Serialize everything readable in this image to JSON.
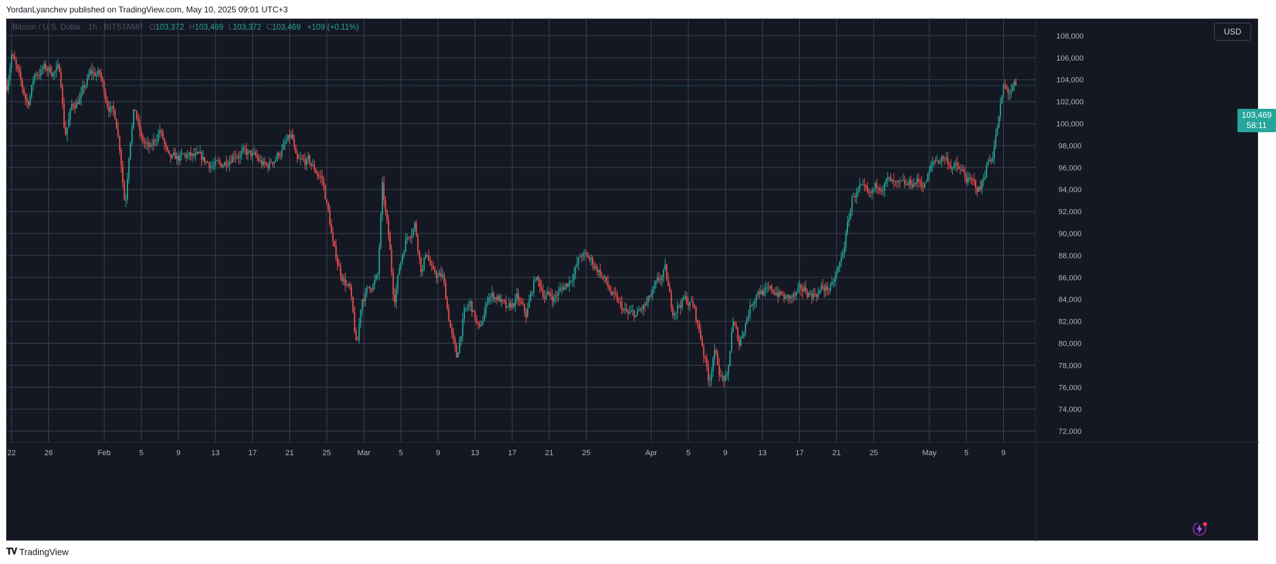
{
  "header": {
    "publish_text": "YordanLyanchev published on TradingView.com, May 10, 2025 09:01 UTC+3"
  },
  "legend": {
    "symbol": "Bitcoin / U.S. Dollar · 1h · BITSTAMP",
    "o_label": "O",
    "o_value": "103,372",
    "h_label": "H",
    "h_value": "103,469",
    "l_label": "L",
    "l_value": "103,372",
    "c_label": "C",
    "c_value": "103,469",
    "change": "+109 (+0.11%)"
  },
  "currency": "USD",
  "last_price": {
    "price": "103,469",
    "countdown": "58:11"
  },
  "footer": {
    "brand": "TradingView"
  },
  "colors": {
    "up": "#26a69a",
    "down": "#ef5350",
    "grid": "#3c4150",
    "background": "#141823",
    "axis_text": "#b2b5be"
  },
  "chart_data": {
    "type": "candlestick",
    "title": "",
    "interval": "1h",
    "ylim": [
      71000,
      109500
    ],
    "y_ticks": [
      72000,
      74000,
      76000,
      78000,
      80000,
      82000,
      84000,
      86000,
      88000,
      90000,
      92000,
      94000,
      96000,
      98000,
      100000,
      102000,
      104000,
      106000,
      108000
    ],
    "y_tick_labels": [
      "72,000",
      "74,000",
      "76,000",
      "78,000",
      "80,000",
      "82,000",
      "84,000",
      "86,000",
      "88,000",
      "90,000",
      "92,000",
      "94,000",
      "96,000",
      "98,000",
      "100,000",
      "102,000",
      "104,000",
      "106,000",
      "108,000"
    ],
    "x_axis_labels": [
      "22",
      "26",
      "Feb",
      "5",
      "9",
      "13",
      "17",
      "21",
      "25",
      "Mar",
      "5",
      "9",
      "13",
      "17",
      "21",
      "25",
      "Apr",
      "5",
      "9",
      "13",
      "17",
      "21",
      "25",
      "May",
      "5",
      "9"
    ],
    "x_axis_dates": [
      "2025-01-22",
      "2025-01-26",
      "2025-02-01",
      "2025-02-05",
      "2025-02-09",
      "2025-02-13",
      "2025-02-17",
      "2025-02-21",
      "2025-02-25",
      "2025-03-01",
      "2025-03-05",
      "2025-03-09",
      "2025-03-13",
      "2025-03-17",
      "2025-03-21",
      "2025-03-25",
      "2025-04-01",
      "2025-04-05",
      "2025-04-09",
      "2025-04-13",
      "2025-04-17",
      "2025-04-21",
      "2025-04-25",
      "2025-05-01",
      "2025-05-05",
      "2025-05-09"
    ],
    "x_range": [
      "2025-01-21T12:00",
      "2025-05-10T09:00"
    ],
    "price_path": [
      {
        "t": "2025-01-21T12:00",
        "p": 103500
      },
      {
        "t": "2025-01-22T00:00",
        "p": 106500
      },
      {
        "t": "2025-01-23T00:00",
        "p": 103500
      },
      {
        "t": "2025-01-23T18:00",
        "p": 101800
      },
      {
        "t": "2025-01-24T12:00",
        "p": 104500
      },
      {
        "t": "2025-01-25T12:00",
        "p": 105000
      },
      {
        "t": "2025-01-26T12:00",
        "p": 104800
      },
      {
        "t": "2025-01-27T06:00",
        "p": 104800
      },
      {
        "t": "2025-01-27T18:00",
        "p": 99000
      },
      {
        "t": "2025-01-28T12:00",
        "p": 101500
      },
      {
        "t": "2025-01-29T12:00",
        "p": 102500
      },
      {
        "t": "2025-01-30T12:00",
        "p": 104500
      },
      {
        "t": "2025-01-31T12:00",
        "p": 104500
      },
      {
        "t": "2025-02-01T06:00",
        "p": 102200
      },
      {
        "t": "2025-02-02T06:00",
        "p": 100500
      },
      {
        "t": "2025-02-02T18:00",
        "p": 97500
      },
      {
        "t": "2025-02-03T06:00",
        "p": 92500
      },
      {
        "t": "2025-02-03T18:00",
        "p": 98500
      },
      {
        "t": "2025-02-04T06:00",
        "p": 101500
      },
      {
        "t": "2025-02-05T00:00",
        "p": 98500
      },
      {
        "t": "2025-02-06T00:00",
        "p": 97500
      },
      {
        "t": "2025-02-07T00:00",
        "p": 99500
      },
      {
        "t": "2025-02-08T00:00",
        "p": 96500
      },
      {
        "t": "2025-02-10T00:00",
        "p": 97000
      },
      {
        "t": "2025-02-12T00:00",
        "p": 96500
      },
      {
        "t": "2025-02-13T12:00",
        "p": 96000
      },
      {
        "t": "2025-02-15T00:00",
        "p": 97500
      },
      {
        "t": "2025-02-17T00:00",
        "p": 97000
      },
      {
        "t": "2025-02-18T12:00",
        "p": 96000
      },
      {
        "t": "2025-02-20T00:00",
        "p": 97500
      },
      {
        "t": "2025-02-21T06:00",
        "p": 98800
      },
      {
        "t": "2025-02-21T18:00",
        "p": 96200
      },
      {
        "t": "2025-02-23T00:00",
        "p": 96500
      },
      {
        "t": "2025-02-24T12:00",
        "p": 95000
      },
      {
        "t": "2025-02-25T06:00",
        "p": 91500
      },
      {
        "t": "2025-02-25T18:00",
        "p": 88500
      },
      {
        "t": "2025-02-26T12:00",
        "p": 86500
      },
      {
        "t": "2025-02-27T12:00",
        "p": 84800
      },
      {
        "t": "2025-02-28T06:00",
        "p": 79200
      },
      {
        "t": "2025-02-28T18:00",
        "p": 84000
      },
      {
        "t": "2025-03-01T12:00",
        "p": 85000
      },
      {
        "t": "2025-03-02T12:00",
        "p": 86000
      },
      {
        "t": "2025-03-03T00:00",
        "p": 94000
      },
      {
        "t": "2025-03-03T18:00",
        "p": 89000
      },
      {
        "t": "2025-03-04T06:00",
        "p": 84000
      },
      {
        "t": "2025-03-04T18:00",
        "p": 86500
      },
      {
        "t": "2025-03-05T12:00",
        "p": 89500
      },
      {
        "t": "2025-03-06T12:00",
        "p": 91000
      },
      {
        "t": "2025-03-07T06:00",
        "p": 86500
      },
      {
        "t": "2025-03-07T18:00",
        "p": 88500
      },
      {
        "t": "2025-03-08T12:00",
        "p": 86200
      },
      {
        "t": "2025-03-09T12:00",
        "p": 86000
      },
      {
        "t": "2025-03-10T06:00",
        "p": 82000
      },
      {
        "t": "2025-03-11T00:00",
        "p": 78500
      },
      {
        "t": "2025-03-11T18:00",
        "p": 82500
      },
      {
        "t": "2025-03-12T12:00",
        "p": 83500
      },
      {
        "t": "2025-03-13T12:00",
        "p": 81000
      },
      {
        "t": "2025-03-14T12:00",
        "p": 84500
      },
      {
        "t": "2025-03-15T12:00",
        "p": 84200
      },
      {
        "t": "2025-03-16T12:00",
        "p": 82800
      },
      {
        "t": "2025-03-17T12:00",
        "p": 84000
      },
      {
        "t": "2025-03-18T12:00",
        "p": 82500
      },
      {
        "t": "2025-03-19T12:00",
        "p": 86000
      },
      {
        "t": "2025-03-20T12:00",
        "p": 84500
      },
      {
        "t": "2025-03-21T12:00",
        "p": 84200
      },
      {
        "t": "2025-03-23T00:00",
        "p": 85500
      },
      {
        "t": "2025-03-24T12:00",
        "p": 88000
      },
      {
        "t": "2025-03-25T12:00",
        "p": 87500
      },
      {
        "t": "2025-03-26T12:00",
        "p": 86500
      },
      {
        "t": "2025-03-28T00:00",
        "p": 84000
      },
      {
        "t": "2025-03-29T12:00",
        "p": 82500
      },
      {
        "t": "2025-03-30T12:00",
        "p": 82600
      },
      {
        "t": "2025-03-31T12:00",
        "p": 83500
      },
      {
        "t": "2025-04-02T12:00",
        "p": 86500
      },
      {
        "t": "2025-04-03T06:00",
        "p": 83000
      },
      {
        "t": "2025-04-04T12:00",
        "p": 84000
      },
      {
        "t": "2025-04-05T12:00",
        "p": 83500
      },
      {
        "t": "2025-04-06T12:00",
        "p": 80000
      },
      {
        "t": "2025-04-07T06:00",
        "p": 76500
      },
      {
        "t": "2025-04-07T18:00",
        "p": 79500
      },
      {
        "t": "2025-04-08T12:00",
        "p": 77000
      },
      {
        "t": "2025-04-09T06:00",
        "p": 76500
      },
      {
        "t": "2025-04-09T18:00",
        "p": 82000
      },
      {
        "t": "2025-04-10T12:00",
        "p": 80000
      },
      {
        "t": "2025-04-11T12:00",
        "p": 83000
      },
      {
        "t": "2025-04-12T12:00",
        "p": 85000
      },
      {
        "t": "2025-04-13T12:00",
        "p": 84500
      },
      {
        "t": "2025-04-14T12:00",
        "p": 84800
      },
      {
        "t": "2025-04-15T12:00",
        "p": 84000
      },
      {
        "t": "2025-04-16T12:00",
        "p": 84200
      },
      {
        "t": "2025-04-17T12:00",
        "p": 84800
      },
      {
        "t": "2025-04-18T12:00",
        "p": 84500
      },
      {
        "t": "2025-04-19T12:00",
        "p": 85000
      },
      {
        "t": "2025-04-20T12:00",
        "p": 85000
      },
      {
        "t": "2025-04-21T12:00",
        "p": 87500
      },
      {
        "t": "2025-04-22T06:00",
        "p": 91000
      },
      {
        "t": "2025-04-22T18:00",
        "p": 93500
      },
      {
        "t": "2025-04-23T12:00",
        "p": 94000
      },
      {
        "t": "2025-04-24T12:00",
        "p": 93000
      },
      {
        "t": "2025-04-25T12:00",
        "p": 94500
      },
      {
        "t": "2025-04-26T12:00",
        "p": 94800
      },
      {
        "t": "2025-04-27T12:00",
        "p": 94000
      },
      {
        "t": "2025-04-28T12:00",
        "p": 94200
      },
      {
        "t": "2025-04-29T12:00",
        "p": 94800
      },
      {
        "t": "2025-04-30T12:00",
        "p": 94500
      },
      {
        "t": "2025-05-01T12:00",
        "p": 96500
      },
      {
        "t": "2025-05-02T12:00",
        "p": 97000
      },
      {
        "t": "2025-05-03T12:00",
        "p": 96200
      },
      {
        "t": "2025-05-04T12:00",
        "p": 95500
      },
      {
        "t": "2025-05-05T12:00",
        "p": 94500
      },
      {
        "t": "2025-05-06T12:00",
        "p": 94000
      },
      {
        "t": "2025-05-07T06:00",
        "p": 96500
      },
      {
        "t": "2025-05-07T18:00",
        "p": 97000
      },
      {
        "t": "2025-05-08T12:00",
        "p": 100500
      },
      {
        "t": "2025-05-09T00:00",
        "p": 103200
      },
      {
        "t": "2025-05-09T12:00",
        "p": 102800
      },
      {
        "t": "2025-05-10T09:00",
        "p": 103469
      }
    ],
    "last_price": 103469
  }
}
